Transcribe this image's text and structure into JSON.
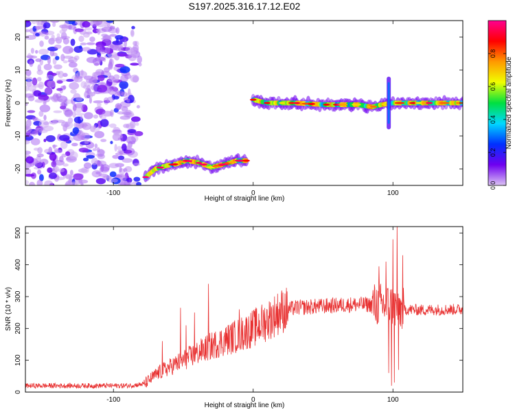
{
  "figure_title": "S197.2025.316.17.12.E02",
  "chart_data": [
    {
      "type": "heatmap",
      "title": "S197.2025.316.17.12.E02",
      "xlabel": "Height of straight line (km)",
      "ylabel": "Frequency (Hz)",
      "xlim": [
        -163,
        150
      ],
      "ylim": [
        -25,
        25
      ],
      "xticks": [
        -100,
        0,
        100
      ],
      "yticks": [
        -20,
        -10,
        0,
        10,
        20
      ],
      "colorbar": {
        "label": "Normalized spectral amplitude",
        "range": [
          0,
          1
        ],
        "ticks": [
          "0.0",
          "0.2",
          "0.4",
          "0.6",
          "0.8"
        ],
        "colors": [
          "#dcc4f4",
          "#6f00f0",
          "#0030ff",
          "#00d8ff",
          "#00e040",
          "#f0ff00",
          "#ff9a00",
          "#ff0000",
          "#ff0090"
        ]
      },
      "noise_region": {
        "x_range": [
          -163,
          -79
        ],
        "y_range": [
          -25,
          25
        ],
        "level": 0.2
      },
      "traces": [
        {
          "name": "lower-branch",
          "points": [
            [
              -77,
              -22.5
            ],
            [
              -70,
              -20
            ],
            [
              -62,
              -19
            ],
            [
              -55,
              -18.5
            ],
            [
              -48,
              -17.5
            ],
            [
              -40,
              -18
            ],
            [
              -30,
              -19.5
            ],
            [
              -20,
              -18.5
            ],
            [
              -12,
              -17.5
            ],
            [
              -5,
              -17.5
            ]
          ]
        },
        {
          "name": "upper-branch",
          "points": [
            [
              0,
              1
            ],
            [
              10,
              0
            ],
            [
              30,
              0
            ],
            [
              50,
              -0.5
            ],
            [
              75,
              -0.5
            ],
            [
              85,
              -1.2
            ],
            [
              92,
              -0.5
            ],
            [
              100,
              0
            ],
            [
              120,
              0
            ],
            [
              150,
              0
            ]
          ]
        },
        {
          "name": "vertical-spike",
          "points": [
            [
              97,
              -8
            ],
            [
              97,
              8
            ]
          ]
        }
      ]
    },
    {
      "type": "line",
      "xlabel": "Height of straight line (km)",
      "ylabel": "SNR (10 * v/v)",
      "xlim": [
        -163,
        150
      ],
      "ylim": [
        0,
        520
      ],
      "xticks": [
        -100,
        0,
        100
      ],
      "yticks": [
        0,
        100,
        200,
        300,
        400,
        500
      ],
      "color": "#e83030",
      "series": [
        {
          "name": "SNR",
          "envelope": [
            [
              -163,
              20
            ],
            [
              -120,
              20
            ],
            [
              -90,
              20
            ],
            [
              -78,
              25
            ],
            [
              -68,
              60
            ],
            [
              -50,
              100
            ],
            [
              -30,
              145
            ],
            [
              -10,
              180
            ],
            [
              0,
              200
            ],
            [
              10,
              225
            ],
            [
              20,
              255
            ],
            [
              30,
              265
            ],
            [
              50,
              270
            ],
            [
              70,
              275
            ],
            [
              90,
              275
            ],
            [
              100,
              270
            ],
            [
              105,
              260
            ],
            [
              120,
              258
            ],
            [
              150,
              260
            ]
          ],
          "peaks": [
            [
              -32,
              340
            ],
            [
              -42,
              250
            ],
            [
              -48,
              210
            ],
            [
              -52,
              265
            ],
            [
              -65,
              160
            ],
            [
              -10,
              260
            ],
            [
              90,
              395
            ],
            [
              95,
              410
            ],
            [
              100,
              480
            ],
            [
              103,
              525
            ],
            [
              107,
              430
            ]
          ],
          "dips": [
            [
              97,
              60
            ],
            [
              99,
              20
            ],
            [
              101,
              30
            ],
            [
              104,
              70
            ]
          ]
        }
      ]
    }
  ]
}
